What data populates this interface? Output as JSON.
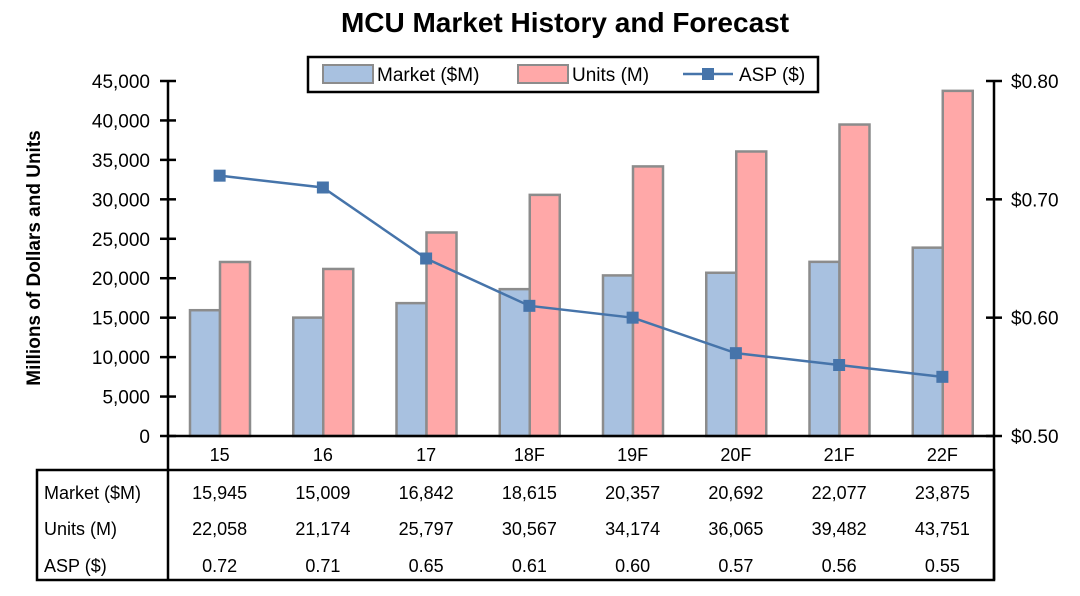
{
  "chart_data": {
    "type": "bar",
    "title": "MCU Market History and Forecast",
    "ylabel": "Millions of Dollars and Units",
    "y2label": "",
    "categories": [
      "15",
      "16",
      "17",
      "18F",
      "19F",
      "20F",
      "21F",
      "22F"
    ],
    "ylim": [
      0,
      45000
    ],
    "yticks": [
      "0",
      "5,000",
      "10,000",
      "15,000",
      "20,000",
      "25,000",
      "30,000",
      "35,000",
      "40,000",
      "45,000"
    ],
    "y2lim": [
      0.5,
      0.8
    ],
    "y2ticks": [
      "$0.50",
      "$0.60",
      "$0.70",
      "$0.80"
    ],
    "legend_position": "top-center",
    "series": [
      {
        "name": "Market ($M)",
        "type": "bar",
        "color": "#a8c1e0",
        "values": [
          15945,
          15009,
          16842,
          18615,
          20357,
          20692,
          22077,
          23875
        ]
      },
      {
        "name": "Units (M)",
        "type": "bar",
        "color": "#ffa8a8",
        "values": [
          22058,
          21174,
          25797,
          30567,
          34174,
          36065,
          39482,
          43751
        ]
      },
      {
        "name": "ASP ($)",
        "type": "line",
        "axis": "right",
        "color": "#4674aa",
        "values": [
          0.72,
          0.71,
          0.65,
          0.61,
          0.6,
          0.57,
          0.56,
          0.55
        ]
      }
    ],
    "table": {
      "row_labels": [
        "Market ($M)",
        "Units (M)",
        "ASP ($)"
      ],
      "rows": [
        [
          "15,945",
          "15,009",
          "16,842",
          "18,615",
          "20,357",
          "20,692",
          "22,077",
          "23,875"
        ],
        [
          "22,058",
          "21,174",
          "25,797",
          "30,567",
          "34,174",
          "36,065",
          "39,482",
          "43,751"
        ],
        [
          "0.72",
          "0.71",
          "0.65",
          "0.61",
          "0.60",
          "0.57",
          "0.56",
          "0.55"
        ]
      ]
    }
  }
}
